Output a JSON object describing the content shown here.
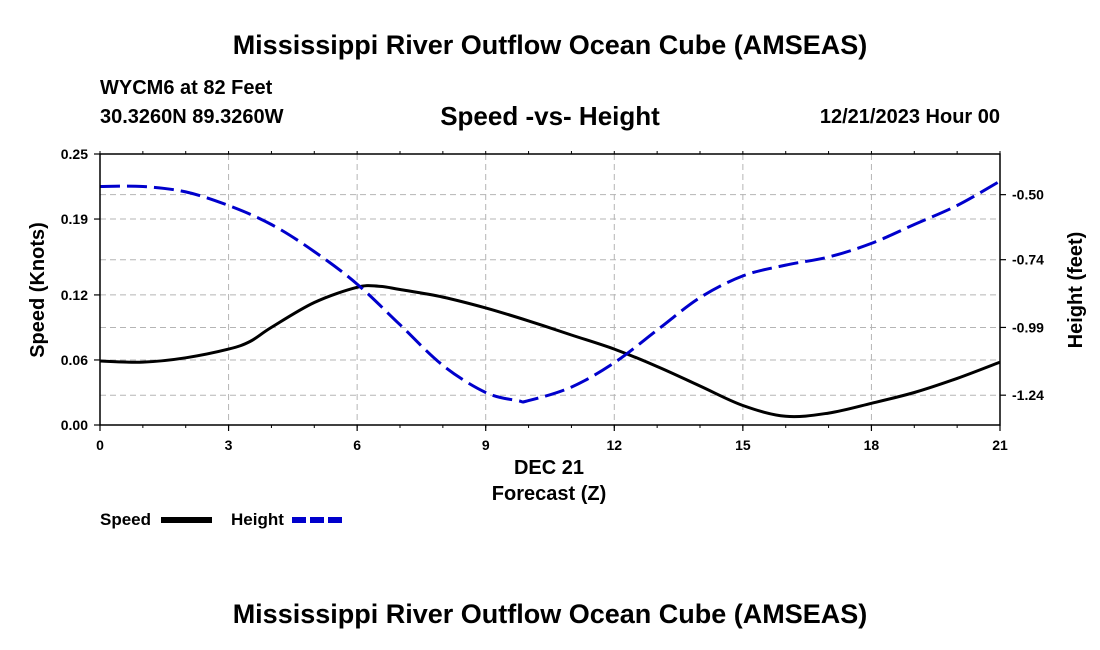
{
  "header": {
    "main_title": "Mississippi River Outflow Ocean Cube (AMSEAS)",
    "station": "WYCM6 at 82 Feet",
    "coords": "30.3260N  89.3260W",
    "subtitle": "Speed -vs- Height",
    "datetime": "12/21/2023 Hour 00"
  },
  "footer": {
    "main_title_repeat": "Mississippi River Outflow Ocean Cube (AMSEAS)"
  },
  "chart_data": {
    "type": "line",
    "title": "Speed -vs- Height",
    "xlabel": "Forecast (Z)",
    "xlabel_date": "DEC 21",
    "ylabel_left": "Speed (Knots)",
    "ylabel_right": "Height (feet)",
    "x_ticks": [
      0,
      3,
      6,
      9,
      12,
      15,
      18,
      21
    ],
    "x_tick_labels": [
      "0",
      "3",
      "6",
      "9",
      "12",
      "15",
      "18",
      "21"
    ],
    "xlim": [
      0,
      21
    ],
    "y_left_ticks": [
      0,
      0.06,
      0.12,
      0.19,
      0.25
    ],
    "y_left_tick_labels": [
      "0.00",
      "0.06",
      "0.12",
      "0.19",
      "0.25"
    ],
    "ylim_left": [
      0,
      0.25
    ],
    "y_right_ticks": [
      -0.5,
      -0.74,
      -0.99,
      -1.24
    ],
    "y_right_tick_labels": [
      "-0.50",
      "-0.74",
      "-0.99",
      "-1.24"
    ],
    "ylim_right": [
      -1.35,
      -0.35
    ],
    "grid": true,
    "legend_position": "bottom-left",
    "series": [
      {
        "name": "Speed",
        "axis": "left",
        "color": "#000000",
        "style": "solid",
        "x": [
          0,
          1,
          2,
          3,
          3.5,
          4,
          5,
          6,
          6.5,
          7,
          8,
          9,
          10,
          11,
          12,
          13,
          14,
          15,
          16,
          17,
          18,
          19,
          20,
          21
        ],
        "values": [
          0.059,
          0.058,
          0.062,
          0.07,
          0.077,
          0.09,
          0.113,
          0.127,
          0.128,
          0.125,
          0.118,
          0.108,
          0.096,
          0.083,
          0.07,
          0.054,
          0.036,
          0.018,
          0.008,
          0.011,
          0.02,
          0.03,
          0.043,
          0.058
        ]
      },
      {
        "name": "Height",
        "axis": "right",
        "color": "#0000cc",
        "style": "dashed",
        "x": [
          0,
          1,
          2,
          3,
          4,
          5,
          6,
          7,
          8,
          9,
          9.75,
          10,
          11,
          12,
          13,
          14,
          15,
          16,
          17,
          18,
          19,
          20,
          21
        ],
        "values": [
          -0.47,
          -0.47,
          -0.49,
          -0.54,
          -0.61,
          -0.71,
          -0.83,
          -0.98,
          -1.13,
          -1.23,
          -1.26,
          -1.26,
          -1.21,
          -1.12,
          -1.0,
          -0.88,
          -0.8,
          -0.76,
          -0.73,
          -0.68,
          -0.61,
          -0.54,
          -0.45
        ]
      }
    ]
  }
}
